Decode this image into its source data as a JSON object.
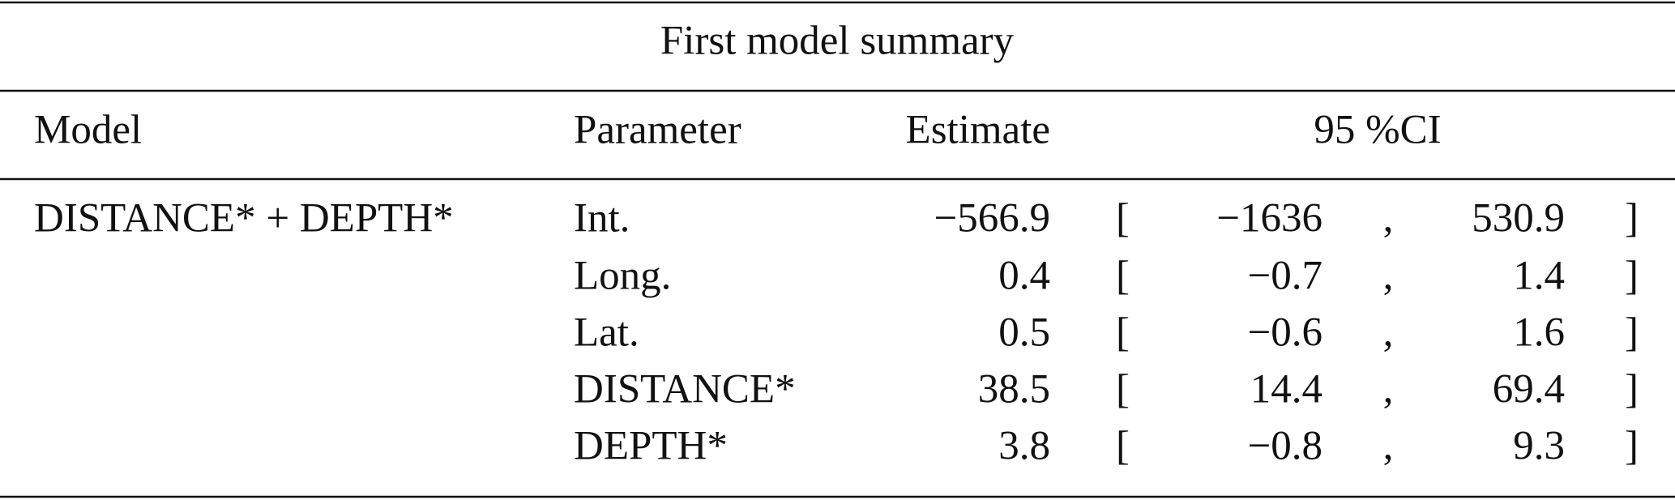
{
  "table": {
    "title": "First model summary",
    "header": [
      "Model",
      "Parameter",
      "Estimate",
      "95 %CI"
    ],
    "model": "DISTANCE* + DEPTH*",
    "rows": [
      [
        "Int.",
        "−566.9",
        "[",
        "−1636",
        ",",
        "530.9",
        "]"
      ],
      [
        "Long.",
        "0.4",
        "[",
        "−0.7",
        ",",
        "1.4",
        "]"
      ],
      [
        "Lat.",
        "0.5",
        "[",
        "−0.6",
        ",",
        "1.6",
        "]"
      ],
      [
        "DISTANCE*",
        "38.5",
        "[",
        "14.4",
        ",",
        "69.4",
        "]"
      ],
      [
        "DEPTH*",
        "3.8",
        "[",
        "−0.8",
        ",",
        "9.3",
        "]"
      ]
    ]
  }
}
